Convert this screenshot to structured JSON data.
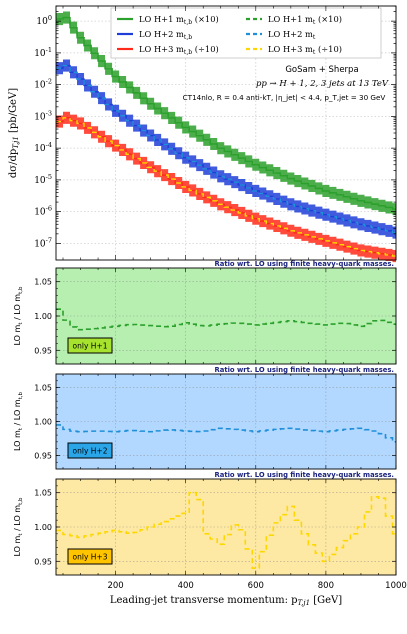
{
  "chart_data": [
    {
      "type": "line",
      "panel": "main",
      "ylabel": "dσ/dp_{T,j1} [pb/GeV]",
      "yscale": "log",
      "ylim": [
        3e-08,
        3
      ],
      "xlim": [
        30,
        1000
      ],
      "grid": true,
      "legend_position": "top",
      "legend": [
        {
          "label": "LO H+1 m_{t,b} (×10)",
          "style": "solid",
          "color": "#2ca02c"
        },
        {
          "label": "LO H+1 m_t (×10)",
          "style": "dashed",
          "color": "#2ca02c"
        },
        {
          "label": "LO H+2 m_{t,b}",
          "style": "solid",
          "color": "#1f3ed8"
        },
        {
          "label": "LO H+2 m_t",
          "style": "dashed",
          "color": "#1f8fd8"
        },
        {
          "label": "LO H+3 m_{t,b} (÷10)",
          "style": "solid",
          "color": "#ff2a1a"
        },
        {
          "label": "LO H+3 m_t (÷10)",
          "style": "dashed",
          "color": "#ffd700"
        }
      ],
      "annotations": [
        "GoSam + Sherpa",
        "pp → H + 1, 2, 3 jets at 13 TeV",
        "CT14nlo, R = 0.4 anti-kT, |η_jet| < 4.4, p_T,jet = 30 GeV"
      ],
      "series": [
        {
          "name": "LO H+1 m_{t,b} (×10)",
          "color": "#2ca02c",
          "x": [
            30,
            60,
            100,
            200,
            300,
            400,
            500,
            600,
            700,
            800,
            900,
            1000
          ],
          "y": [
            1.1,
            1.3,
            0.3,
            0.018,
            0.0025,
            0.00045,
            0.0001,
            3e-05,
            1.1e-05,
            4.5e-06,
            2.2e-06,
            1.2e-06
          ]
        },
        {
          "name": "LO H+2 m_{t,b}",
          "color": "#1f3ed8",
          "x": [
            30,
            60,
            100,
            200,
            300,
            400,
            500,
            600,
            700,
            800,
            900,
            1000
          ],
          "y": [
            0.03,
            0.04,
            0.015,
            0.0015,
            0.00025,
            5e-05,
            1.3e-05,
            4.5e-06,
            1.7e-06,
            8e-07,
            4e-07,
            2.2e-07
          ]
        },
        {
          "name": "LO H+3 m_{t,b} (÷10)",
          "color": "#ff2a1a",
          "x": [
            30,
            60,
            100,
            200,
            300,
            400,
            500,
            600,
            700,
            800,
            900,
            1000
          ],
          "y": [
            0.0006,
            0.0009,
            0.0006,
            0.00012,
            2.5e-05,
            6e-06,
            1.7e-06,
            6e-07,
            2.5e-07,
            1.2e-07,
            6e-08,
            4e-08
          ]
        }
      ]
    },
    {
      "type": "line",
      "panel": "ratio-h1",
      "title": "Ratio wrt. LO using finite heavy-quark masses.",
      "ylabel": "LO m_t / LO m_{t,b}",
      "ylim": [
        0.93,
        1.07
      ],
      "yticks": [
        "0.95",
        "1.00",
        "1.05"
      ],
      "badge": "only H+1",
      "series": [
        {
          "name": "LO H+1 m_t (×10)",
          "color": "#2ca02c",
          "x": [
            30,
            50,
            75,
            100,
            150,
            200,
            250,
            300,
            350,
            400,
            450,
            500,
            550,
            600,
            650,
            700,
            750,
            800,
            850,
            900,
            950,
            1000
          ],
          "y": [
            1.02,
            1.0,
            0.985,
            0.98,
            0.982,
            0.985,
            0.988,
            0.986,
            0.984,
            0.99,
            0.985,
            0.988,
            0.99,
            0.987,
            0.99,
            0.993,
            0.99,
            0.987,
            0.99,
            0.985,
            0.995,
            0.988
          ]
        }
      ]
    },
    {
      "type": "line",
      "panel": "ratio-h2",
      "title": "Ratio wrt. LO using finite heavy-quark masses.",
      "ylabel": "LO m_t / LO m_{t,b}",
      "ylim": [
        0.93,
        1.07
      ],
      "yticks": [
        "0.95",
        "1.00",
        "1.05"
      ],
      "badge": "only H+2",
      "series": [
        {
          "name": "LO H+2 m_t",
          "color": "#1f8fd8",
          "x": [
            30,
            50,
            75,
            100,
            150,
            200,
            250,
            300,
            350,
            400,
            450,
            500,
            550,
            600,
            650,
            700,
            750,
            800,
            850,
            900,
            950,
            1000
          ],
          "y": [
            1.0,
            0.99,
            0.986,
            0.985,
            0.986,
            0.985,
            0.987,
            0.985,
            0.988,
            0.986,
            0.985,
            0.99,
            0.988,
            0.985,
            0.988,
            0.99,
            0.987,
            0.985,
            0.988,
            0.99,
            0.985,
            0.97
          ]
        }
      ]
    },
    {
      "type": "line",
      "panel": "ratio-h3",
      "title": "Ratio wrt. LO using finite heavy-quark masses.",
      "ylabel": "LO m_t / LO m_{t,b}",
      "xlabel": "Leading-jet transverse momentum: p_{T,j1} [GeV]",
      "ylim": [
        0.93,
        1.07
      ],
      "yticks": [
        "0.95",
        "1.00",
        "1.05"
      ],
      "xticks": [
        "200",
        "400",
        "600",
        "800",
        "1000"
      ],
      "badge": "only H+3",
      "series": [
        {
          "name": "LO H+3 m_t (÷10)",
          "color": "#ffd700",
          "x": [
            30,
            50,
            75,
            100,
            150,
            200,
            250,
            300,
            350,
            400,
            430,
            460,
            500,
            550,
            600,
            650,
            700,
            750,
            800,
            850,
            900,
            950,
            1000
          ],
          "y": [
            1.0,
            0.99,
            0.988,
            0.985,
            0.99,
            0.995,
            0.99,
            1.0,
            1.01,
            1.02,
            1.065,
            0.99,
            0.975,
            1.01,
            0.94,
            1.0,
            1.03,
            0.98,
            0.95,
            0.975,
            1.0,
            1.055,
            0.99
          ]
        }
      ]
    }
  ],
  "main_yticks": [
    "10^0",
    "10^-1",
    "10^-2",
    "10^-3",
    "10^-4",
    "10^-5",
    "10^-6",
    "10^-7"
  ],
  "colors": {
    "h1": "#2ca02c",
    "h2": "#1f3ed8",
    "h2_dash": "#1f8fd8",
    "h3": "#ff2a1a",
    "h3_dash": "#ffd700",
    "h1_band": "#b7efb0",
    "h2_band": "#b3d8ff",
    "h3_band": "#fde9a3",
    "badge_h1": "#a6e22e",
    "badge_h2": "#29a5e8",
    "badge_h3": "#ffc400",
    "ratio_title": "#1a237e"
  }
}
